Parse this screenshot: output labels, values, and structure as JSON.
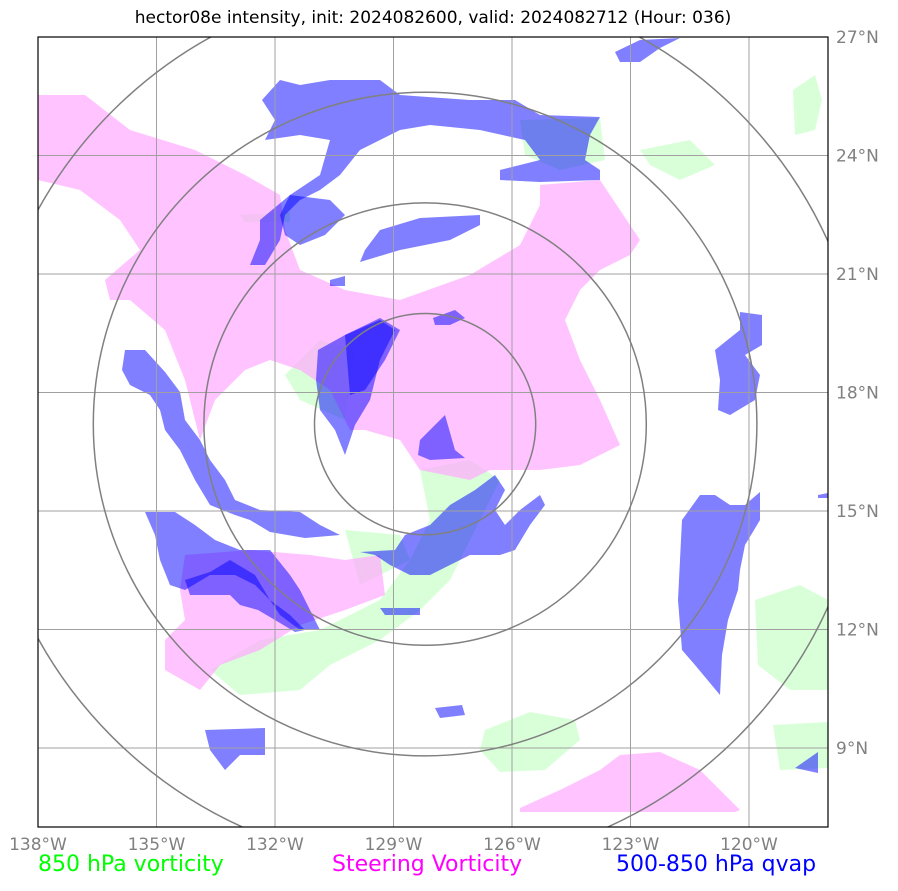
{
  "title": "hector08e intensity, init: 2024082600, valid: 2024082712 (Hour: 036)",
  "map": {
    "lon_range": [
      -138.0,
      -118.0
    ],
    "lat_range": [
      7.0,
      27.0
    ],
    "lon_ticks": [
      {
        "value": -138,
        "label": "138°W"
      },
      {
        "value": -135,
        "label": "135°W"
      },
      {
        "value": -132,
        "label": "132°W"
      },
      {
        "value": -129,
        "label": "129°W"
      },
      {
        "value": -126,
        "label": "126°W"
      },
      {
        "value": -123,
        "label": "123°W"
      },
      {
        "value": -120,
        "label": "120°W"
      }
    ],
    "lat_ticks": [
      {
        "value": 27,
        "label": "27°N"
      },
      {
        "value": 24,
        "label": "24°N"
      },
      {
        "value": 21,
        "label": "21°N"
      },
      {
        "value": 18,
        "label": "18°N"
      },
      {
        "value": 15,
        "label": "15°N"
      },
      {
        "value": 12,
        "label": "12°N"
      },
      {
        "value": 9,
        "label": "9°N"
      }
    ],
    "storm_center": {
      "lon": -128.2,
      "lat": 17.2
    },
    "range_ring_radii_deg": [
      2.8,
      5.6,
      8.4,
      11.2
    ],
    "colors": {
      "vorticity_850": "#ccffcc",
      "steering_vorticity": "#ffaaff",
      "qvap": "#0000ff",
      "ring": "#808080",
      "grid": "#a0a0a0"
    }
  },
  "legend": [
    {
      "label": "850 hPa vorticity",
      "color": "#00ff00"
    },
    {
      "label": "Steering Vorticity",
      "color": "#ff00ff"
    },
    {
      "label": "500-850 hPa qvap",
      "color": "#0000ff"
    }
  ]
}
